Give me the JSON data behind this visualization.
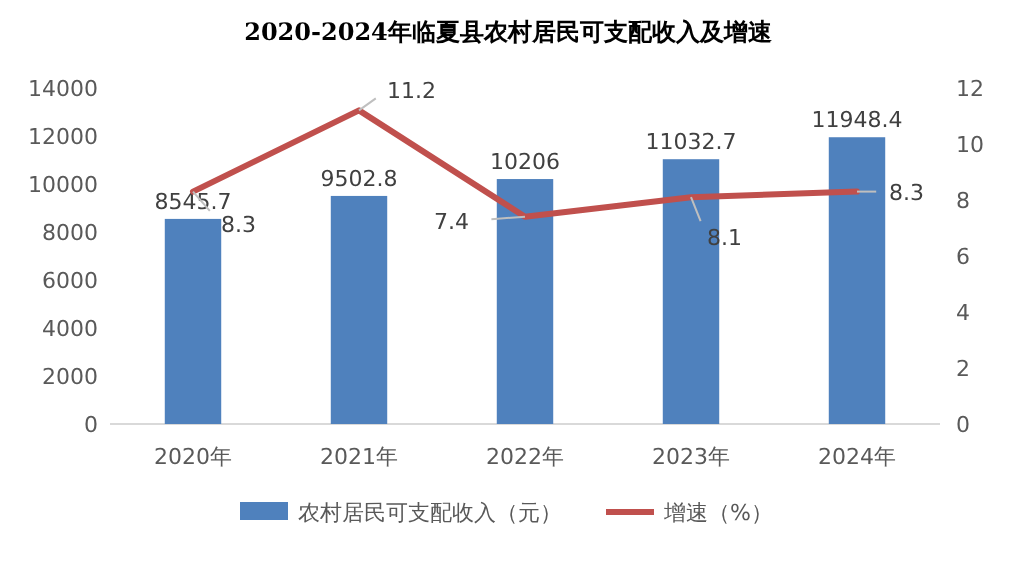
{
  "chart_data": {
    "type": "bar",
    "title": "2020-2024年临夏县农村居民可支配收入及增速",
    "categories": [
      "2020年",
      "2021年",
      "2022年",
      "2023年",
      "2024年"
    ],
    "series": [
      {
        "name": "农村居民可支配收入（元）",
        "color": "#4f81bd",
        "values": [
          8545.7,
          9502.8,
          10206,
          11032.7,
          11948.4
        ]
      },
      {
        "name": "增速（%）",
        "type": "line",
        "axis": "y2",
        "color": "#c0504d",
        "values": [
          8.3,
          11.2,
          7.4,
          8.1,
          8.3
        ]
      }
    ],
    "ylim": [
      0,
      14000
    ],
    "yticks": [
      0,
      2000,
      4000,
      6000,
      8000,
      10000,
      12000,
      14000
    ],
    "y2lim": [
      0,
      12
    ],
    "y2ticks": [
      0,
      2,
      4,
      6,
      8,
      10,
      12
    ],
    "data_labels": true,
    "legend": "bottom",
    "marker": "none",
    "line_style": "solid"
  }
}
